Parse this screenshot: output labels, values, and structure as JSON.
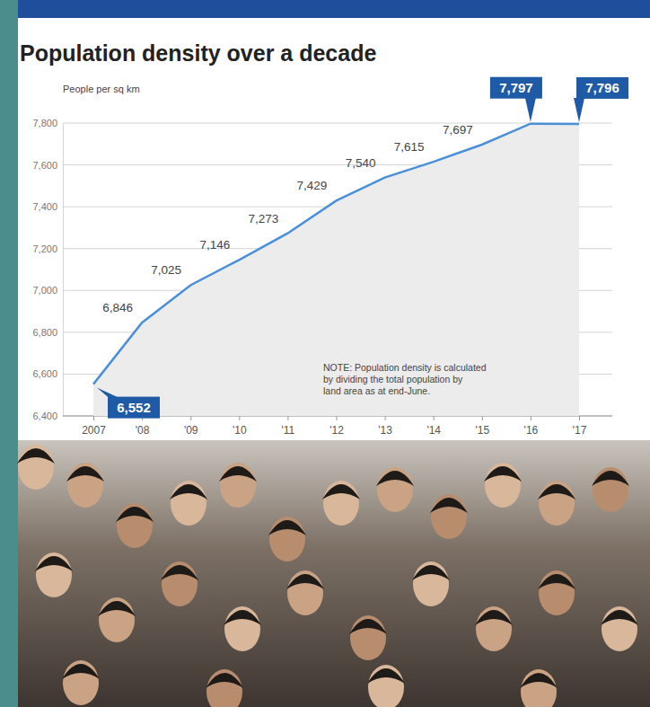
{
  "chart_data": {
    "type": "line",
    "title": "Population density over a decade",
    "y_label": "People per sq km",
    "annotations": [
      "NOTE: Population density is calculated",
      "by dividing the total population by",
      "land area as at end-June."
    ],
    "categories": [
      "2007",
      "'08",
      "'09",
      "'10",
      "'11",
      "'12",
      "'13",
      "'14",
      "'15",
      "'16",
      "'17"
    ],
    "values": [
      6552,
      6846,
      7025,
      7146,
      7273,
      7429,
      7540,
      7615,
      7697,
      7797,
      7796
    ],
    "value_labels": [
      "6,552",
      "6,846",
      "7,025",
      "7,146",
      "7,273",
      "7,429",
      "7,540",
      "7,615",
      "7,697",
      "7,797",
      "7,796"
    ],
    "color": "#4a90d9",
    "ylim": [
      6400,
      7800
    ],
    "yticks": [
      {
        "value": 6400,
        "label": "6,400"
      },
      {
        "value": 6600,
        "label": "6,600"
      },
      {
        "value": 6800,
        "label": "6,800"
      },
      {
        "value": 7000,
        "label": "7,000"
      },
      {
        "value": 7200,
        "label": "7,200"
      },
      {
        "value": 7400,
        "label": "7,400"
      },
      {
        "value": 7600,
        "label": "7,600"
      },
      {
        "value": 7800,
        "label": "7,800"
      }
    ],
    "grid": true,
    "data_labels": true
  }
}
